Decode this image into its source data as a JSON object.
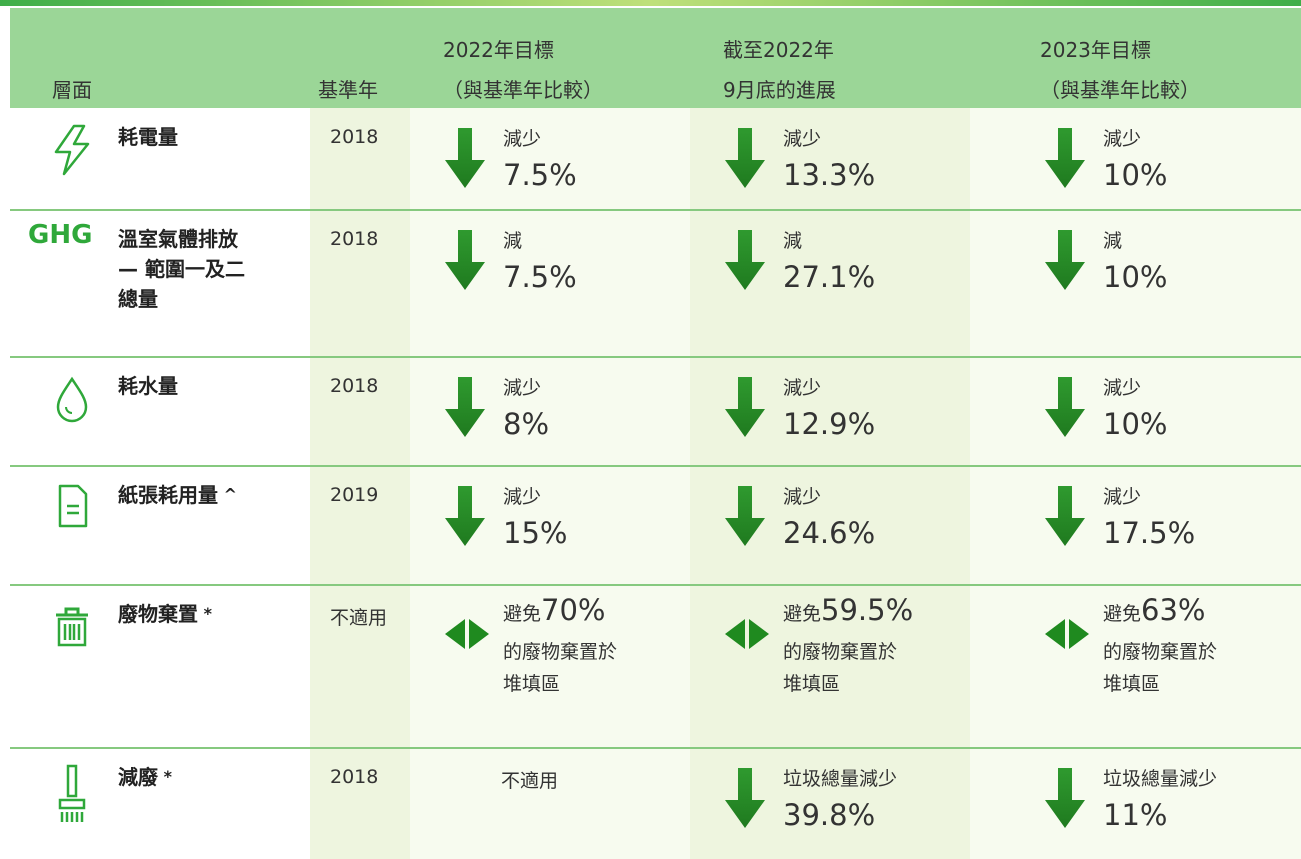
{
  "header": {
    "aspect": "層面",
    "base_year": "基準年",
    "target_2022": [
      "2022年目標",
      "（與基準年比較）"
    ],
    "progress": [
      "截至2022年",
      "9月底的進展"
    ],
    "target_2023": [
      "2023年目標",
      "（與基準年比較）"
    ]
  },
  "rows": [
    {
      "aspect": [
        "耗電量"
      ],
      "base_year": "2018",
      "target_2022": {
        "label": "減少",
        "value": "7.5%"
      },
      "progress": {
        "label": "減少",
        "value": "13.3%"
      },
      "target_2023": {
        "label": "減少",
        "value": "10%"
      }
    },
    {
      "icon_text": "GHG",
      "aspect": [
        "溫室氣體排放",
        "— 範圍一及二",
        "總量"
      ],
      "base_year": "2018",
      "target_2022": {
        "label": "減",
        "value": "7.5%"
      },
      "progress": {
        "label": "減",
        "value": "27.1%"
      },
      "target_2023": {
        "label": "減",
        "value": "10%"
      }
    },
    {
      "aspect": [
        "耗水量"
      ],
      "base_year": "2018",
      "target_2022": {
        "label": "減少",
        "value": "8%"
      },
      "progress": {
        "label": "減少",
        "value": "12.9%"
      },
      "target_2023": {
        "label": "減少",
        "value": "10%"
      }
    },
    {
      "aspect": [
        "紙張耗用量"
      ],
      "mark": "^",
      "base_year": "2019",
      "target_2022": {
        "label": "減少",
        "value": "15%"
      },
      "progress": {
        "label": "減少",
        "value": "24.6%"
      },
      "target_2023": {
        "label": "減少",
        "value": "17.5%"
      }
    },
    {
      "aspect": [
        "廢物棄置"
      ],
      "mark": "*",
      "base_year": "不適用",
      "target_2022": {
        "label": "避免",
        "value": "70%",
        "note": [
          "的廢物棄置於",
          "堆填區"
        ]
      },
      "progress": {
        "label": "避免",
        "value": "59.5%",
        "note": [
          "的廢物棄置於",
          "堆填區"
        ]
      },
      "target_2023": {
        "label": "避免",
        "value": "63%",
        "note": [
          "的廢物棄置於",
          "堆填區"
        ]
      }
    },
    {
      "aspect": [
        "減廢"
      ],
      "mark": "*",
      "base_year": "2018",
      "target_2022": {
        "text": "不適用"
      },
      "progress": {
        "label": "垃圾總量減少",
        "value": "39.8%"
      },
      "target_2023": {
        "label": "垃圾總量減少",
        "value": "11%"
      }
    }
  ]
}
